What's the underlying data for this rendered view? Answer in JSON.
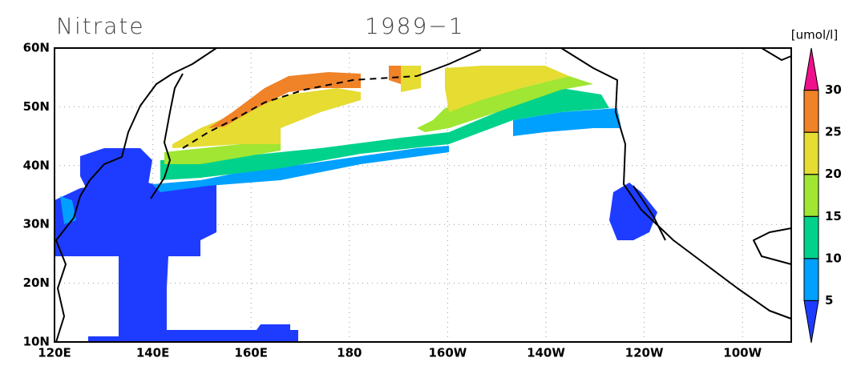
{
  "title": "Nitrate",
  "date": "1989−1",
  "colorbar": {
    "unit": "[umol/l]",
    "levels": [
      5,
      10,
      15,
      20,
      25,
      30
    ],
    "colors": [
      "#1e3cff",
      "#00a0ff",
      "#00d28c",
      "#a0e632",
      "#e6dc32",
      "#f08228",
      "#f0108c"
    ]
  },
  "axes": {
    "lon_labels": [
      "120E",
      "140E",
      "160E",
      "180",
      "160W",
      "140W",
      "120W",
      "100W"
    ],
    "lat_labels": [
      "10N",
      "20N",
      "30N",
      "40N",
      "50N",
      "60N"
    ]
  }
}
